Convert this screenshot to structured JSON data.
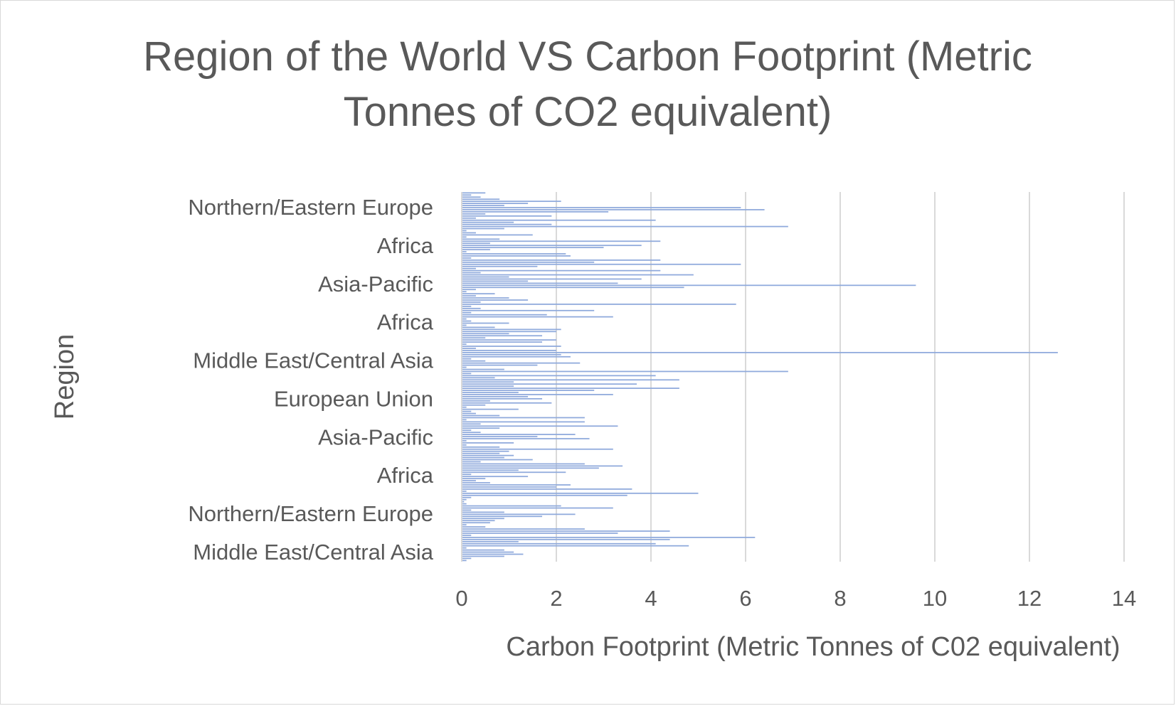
{
  "chart_data": {
    "type": "bar",
    "orientation": "horizontal",
    "title": "Region of the World VS Carbon Footprint (Metric Tonnes of CO2 equivalent)",
    "xlabel": "Carbon Footprint (Metric Tonnes of C02 equivalent)",
    "ylabel": "Region",
    "xlim": [
      0,
      14
    ],
    "xticks": [
      "0",
      "2",
      "4",
      "6",
      "8",
      "10",
      "12",
      "14"
    ],
    "category_labels": [
      "Northern/Eastern Europe",
      "Africa",
      "Asia-Pacific",
      "Africa",
      "Middle East/Central Asia",
      "European Union",
      "Asia-Pacific",
      "Africa",
      "Northern/Eastern Europe",
      "Middle East/Central Asia"
    ],
    "grid": "vertical",
    "legend": "none",
    "bar_color": "#8faadc",
    "values": [
      0.5,
      0.2,
      0.4,
      0.8,
      2.1,
      1.4,
      0.9,
      5.9,
      6.4,
      3.1,
      0.5,
      1.9,
      0.3,
      4.1,
      1.1,
      1.9,
      6.9,
      0.9,
      0.1,
      0.3,
      1.5,
      0.1,
      0.8,
      4.2,
      0.6,
      3.8,
      3.0,
      0.6,
      0.1,
      2.2,
      2.3,
      0.2,
      4.2,
      2.8,
      5.9,
      1.6,
      0.3,
      4.2,
      0.4,
      4.9,
      1.0,
      3.8,
      1.4,
      3.3,
      9.6,
      4.7,
      0.3,
      0.1,
      0.7,
      0.3,
      1.0,
      1.4,
      0.4,
      5.8,
      0.2,
      0.4,
      2.8,
      0.2,
      1.8,
      3.2,
      0.1,
      0.2,
      1.0,
      0.1,
      0.7,
      2.1,
      2.0,
      1.0,
      1.7,
      0.5,
      2.0,
      1.7,
      0.1,
      2.1,
      0.3,
      2.0,
      12.6,
      2.1,
      2.3,
      0.2,
      0.5,
      2.5,
      1.6,
      0.1,
      0.9,
      6.9,
      0.2,
      4.1,
      0.7,
      4.6,
      1.1,
      3.7,
      1.1,
      4.6,
      2.8,
      1.2,
      3.2,
      1.4,
      1.7,
      0.6,
      1.9,
      0.5,
      0.1,
      1.2,
      0.2,
      0.3,
      0.8,
      2.6,
      0.1,
      2.6,
      0.4,
      3.3,
      0.8,
      0.2,
      0.4,
      2.4,
      1.6,
      2.7,
      0.1,
      1.1,
      0.1,
      0.8,
      3.2,
      1.0,
      0.8,
      1.1,
      0.9,
      1.5,
      0.4,
      2.6,
      3.4,
      2.9,
      1.2,
      2.2,
      0.2,
      1.4,
      0.5,
      0.3,
      0.6,
      2.3,
      2.0,
      3.6,
      0.1,
      5.0,
      3.5,
      0.2,
      0.1,
      0.05,
      0.1,
      2.1,
      3.2,
      0.2,
      0.9,
      2.4,
      1.7,
      0.9,
      0.7,
      0.6,
      0.1,
      0.5,
      2.6,
      4.4,
      3.3,
      0.2,
      6.2,
      4.4,
      1.2,
      4.1,
      4.8,
      0.1,
      0.9,
      1.1,
      1.3,
      0.9,
      0.2,
      0.1
    ]
  }
}
